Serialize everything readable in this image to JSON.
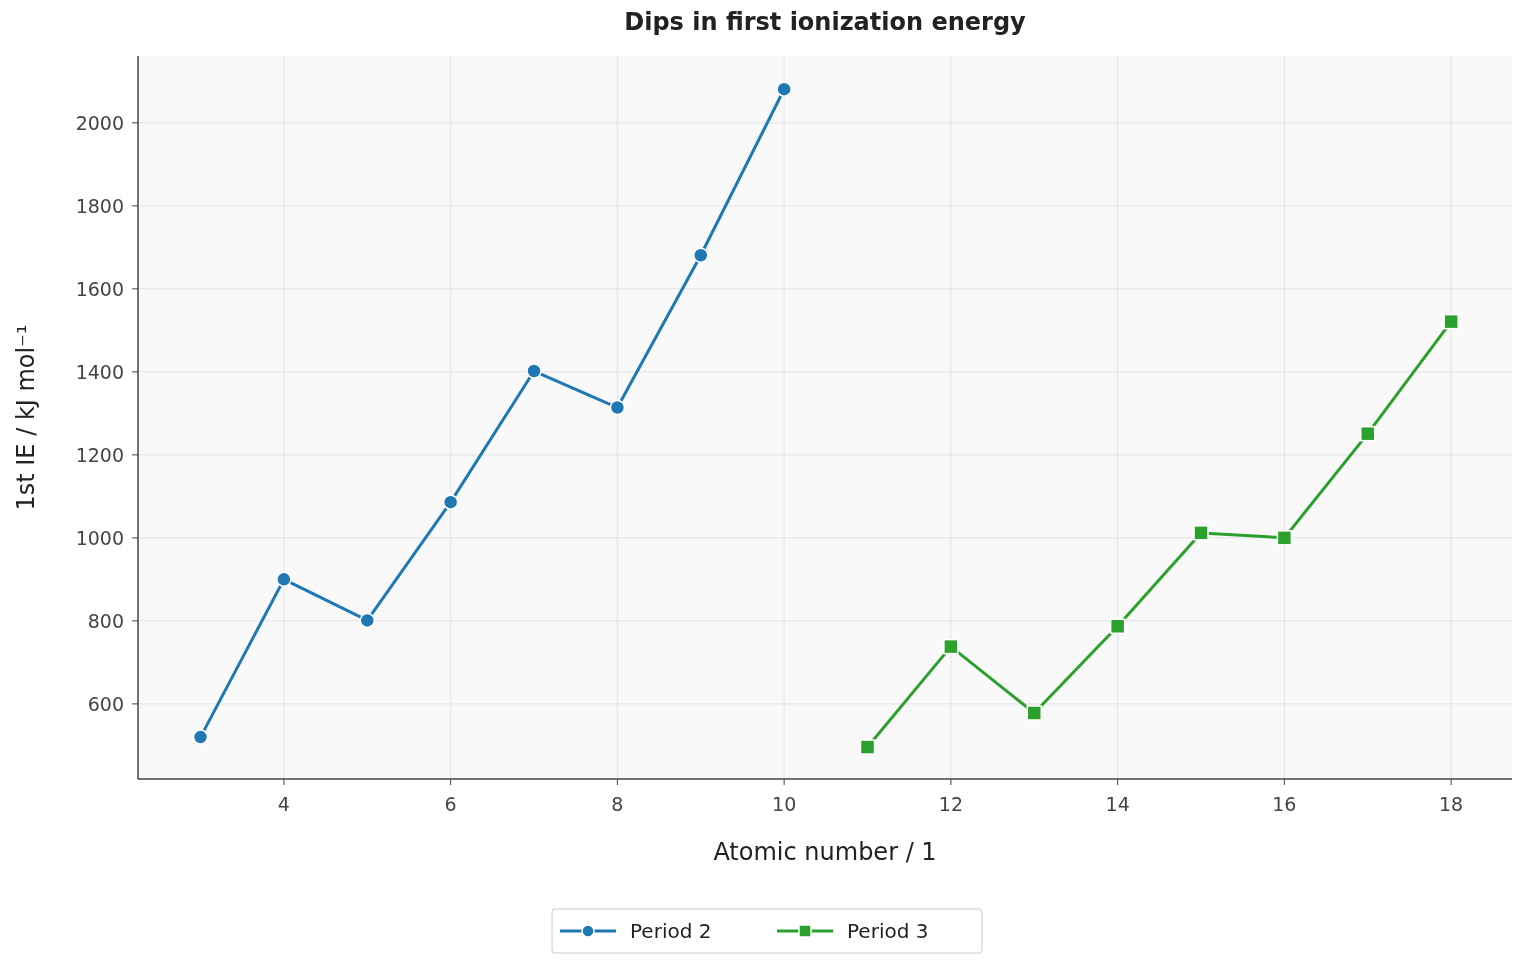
{
  "chart_data": {
    "type": "line",
    "title": "Dips in first ionization energy",
    "xlabel": "Atomic number / 1",
    "ylabel": "1st IE / kJ mol⁻¹",
    "series": [
      {
        "name": "Period 2",
        "color": "#1f77b4",
        "marker": "circle",
        "x": [
          3,
          4,
          5,
          6,
          7,
          8,
          9,
          10
        ],
        "values": [
          520,
          900,
          801,
          1086,
          1402,
          1314,
          1681,
          2081
        ]
      },
      {
        "name": "Period 3",
        "color": "#2ca02c",
        "marker": "square",
        "x": [
          11,
          12,
          13,
          14,
          15,
          16,
          17,
          18
        ],
        "values": [
          496,
          738,
          578,
          787,
          1012,
          1000,
          1251,
          1521
        ]
      }
    ],
    "xlim": [
      2.25,
      18.73
    ],
    "ylim": [
      419,
      2161
    ],
    "xticks": [
      4,
      6,
      8,
      10,
      12,
      14,
      16,
      18
    ],
    "yticks": [
      600,
      800,
      1000,
      1200,
      1400,
      1600,
      1800,
      2000
    ],
    "grid": true,
    "legend": "bottom",
    "line_style": "solid"
  }
}
